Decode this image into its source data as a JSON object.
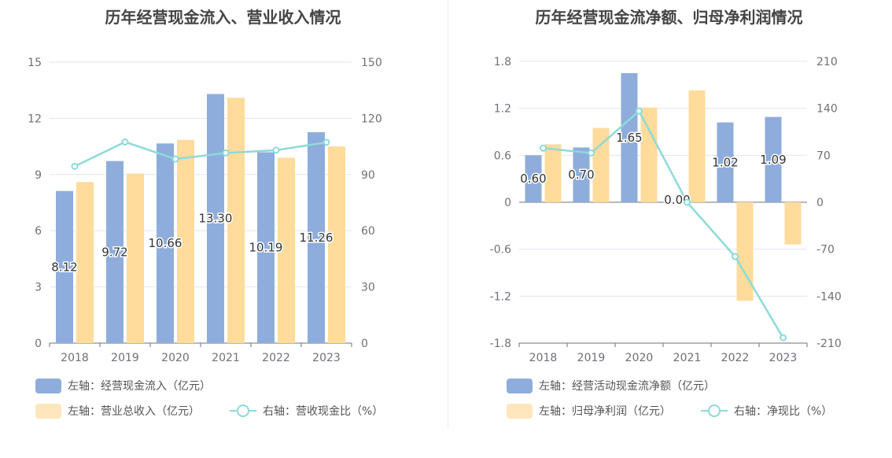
{
  "colors": {
    "blue": "#8eaddc",
    "orange": "#ffdb9c",
    "teal": "#8ddad9"
  },
  "chart_data": [
    {
      "type": "bar",
      "title": "历年经营现金流入、营业收入情况",
      "categories": [
        "2018",
        "2019",
        "2020",
        "2021",
        "2022",
        "2023"
      ],
      "left_axis": {
        "ticks": [
          "0",
          "3",
          "6",
          "9",
          "12",
          "15"
        ],
        "ylim": [
          0,
          15
        ]
      },
      "right_axis": {
        "ticks": [
          "0",
          "30",
          "60",
          "90",
          "120",
          "150"
        ],
        "ylim": [
          0,
          150
        ]
      },
      "series": [
        {
          "name": "左轴：经营现金流入（亿元）",
          "type": "bar",
          "axis": "left",
          "values": [
            8.12,
            9.72,
            10.66,
            13.3,
            10.19,
            11.26
          ],
          "labels": [
            "8.12",
            "9.72",
            "10.66",
            "13.30",
            "10.19",
            "11.26"
          ]
        },
        {
          "name": "左轴：营业总收入（亿元）",
          "type": "bar",
          "axis": "left",
          "values": [
            8.6,
            9.05,
            10.85,
            13.1,
            9.9,
            10.5
          ]
        },
        {
          "name": "右轴：营收现金比（%）",
          "type": "line",
          "axis": "right",
          "values": [
            94.4,
            107.4,
            98.3,
            101.5,
            103.0,
            107.2
          ]
        }
      ]
    },
    {
      "type": "bar",
      "title": "历年经营现金流净额、归母净利润情况",
      "categories": [
        "2018",
        "2019",
        "2020",
        "2021",
        "2022",
        "2023"
      ],
      "left_axis": {
        "ticks": [
          "-1.8",
          "-1.2",
          "-0.6",
          "0",
          "0.6",
          "1.2",
          "1.8"
        ],
        "ylim": [
          -1.8,
          1.8
        ]
      },
      "right_axis": {
        "ticks": [
          "-210",
          "-140",
          "-70",
          "0",
          "70",
          "140",
          "210"
        ],
        "ylim": [
          -210,
          210
        ]
      },
      "series": [
        {
          "name": "左轴：经营活动现金流净额（亿元）",
          "type": "bar",
          "axis": "left",
          "values": [
            0.6,
            0.7,
            1.65,
            0.0,
            1.02,
            1.09
          ],
          "labels": [
            "0.60",
            "0.70",
            "1.65",
            "0.00",
            "1.02",
            "1.09"
          ]
        },
        {
          "name": "左轴：归母净利润（亿元）",
          "type": "bar",
          "axis": "left",
          "values": [
            0.74,
            0.95,
            1.21,
            1.43,
            -1.26,
            -0.54
          ]
        },
        {
          "name": "右轴：净现比（%）",
          "type": "line",
          "axis": "right",
          "values": [
            80.6,
            73.4,
            135.9,
            0.0,
            -81.0,
            -202.0
          ]
        }
      ]
    }
  ]
}
